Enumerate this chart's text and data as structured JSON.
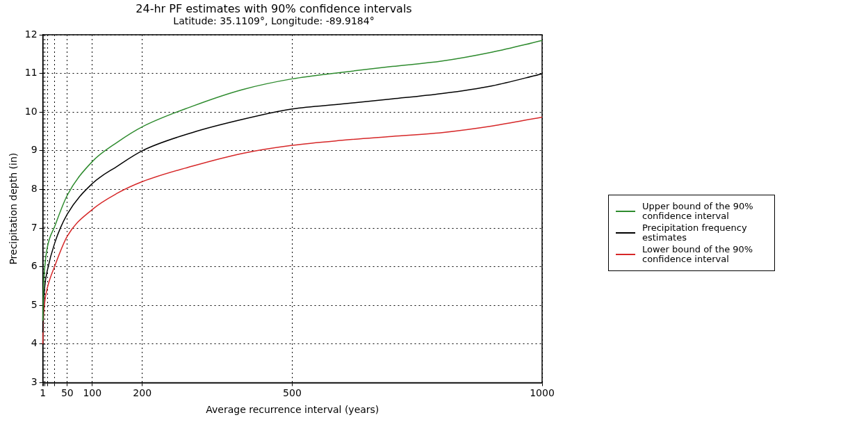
{
  "chart_data": {
    "type": "line",
    "title": "24-hr PF estimates with 90% confidence intervals",
    "subtitle": "Latitude: 35.1109°, Longitude: -89.9184°",
    "xlabel": "Average recurrence interval (years)",
    "ylabel": "Precipitation depth (in)",
    "x": [
      1,
      2,
      5,
      10,
      25,
      50,
      100,
      150,
      200,
      300,
      400,
      500,
      600,
      700,
      800,
      900,
      1000
    ],
    "series": [
      {
        "name": "Upper bound of the 90% confidence interval",
        "color": "#2e8b2e",
        "values": [
          4.6,
          5.3,
          6.0,
          6.5,
          7.05,
          7.85,
          8.72,
          9.22,
          9.62,
          10.15,
          10.58,
          10.86,
          11.03,
          11.18,
          11.32,
          11.55,
          11.85
        ]
      },
      {
        "name": "Precipitation frequency estimates",
        "color": "#000000",
        "values": [
          4.3,
          4.9,
          5.5,
          5.9,
          6.62,
          7.36,
          8.15,
          8.6,
          9.0,
          9.47,
          9.81,
          10.08,
          10.21,
          10.34,
          10.48,
          10.68,
          10.99
        ]
      },
      {
        "name": "Lower bound of the 90% confidence interval",
        "color": "#d62728",
        "values": [
          4.0,
          4.6,
          5.1,
          5.45,
          6.02,
          6.79,
          7.48,
          7.9,
          8.2,
          8.6,
          8.93,
          9.14,
          9.27,
          9.37,
          9.47,
          9.64,
          9.87
        ]
      }
    ],
    "xlim": [
      1,
      1000
    ],
    "ylim": [
      3,
      12
    ],
    "xticks": [
      1,
      {
        "value": 2,
        "label": null
      },
      {
        "value": 5,
        "label": null
      },
      {
        "value": 10,
        "label": null
      },
      {
        "value": 25,
        "label": null
      },
      50,
      100,
      200,
      500,
      1000
    ],
    "yticks": [
      3,
      4,
      5,
      6,
      7,
      8,
      9,
      10,
      11,
      12
    ],
    "grid": true,
    "legend": "right",
    "marker": "none",
    "line_style": "solid"
  }
}
